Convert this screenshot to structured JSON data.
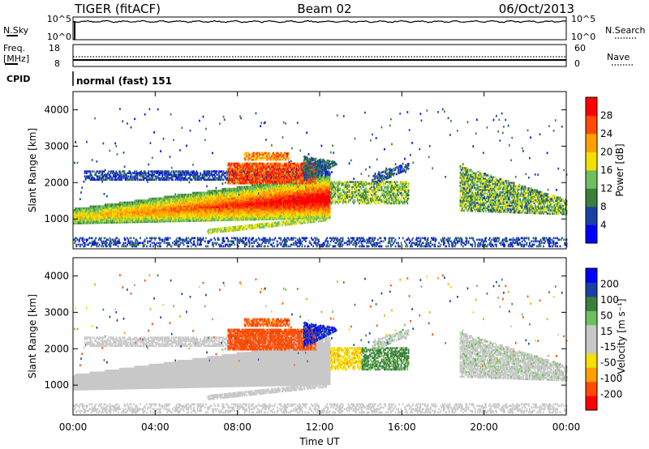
{
  "header": {
    "title": "TIGER (fitACF)",
    "beam": "Beam 02",
    "date": "06/Oct/2013"
  },
  "sky_panel": {
    "left_label": "N.Sky",
    "right_label": "N.Search",
    "left_ticks": [
      "10^5",
      "10^0"
    ],
    "right_ticks": [
      "10^5",
      "10^0"
    ]
  },
  "freq_panel": {
    "left_label_1": "Freq.",
    "left_label_2": "[MHz]",
    "right_label": "Nave",
    "left_ticks": [
      "18",
      "8"
    ],
    "right_ticks": [
      "60",
      "0"
    ]
  },
  "cpid": {
    "label": "CPID",
    "value": "normal (fast) 151"
  },
  "x_axis": {
    "label": "Time UT",
    "ticks": [
      "00:00",
      "04:00",
      "08:00",
      "12:00",
      "16:00",
      "20:00",
      "00:00"
    ]
  },
  "chart_data": [
    {
      "type": "heatmap",
      "title": "Power",
      "ylabel": "Slant Range [km]",
      "xlabel": "",
      "y_ticks": [
        "1000",
        "2000",
        "3000",
        "4000"
      ],
      "ylim": [
        180,
        4500
      ],
      "colorbar_label": "Power [dB]",
      "colorbar_ticks": [
        "28",
        "24",
        "20",
        "16",
        "12",
        "8",
        "4"
      ],
      "colorbar_range": [
        0,
        32
      ],
      "colors": [
        "#0000ff",
        "#1a3fa6",
        "#3a7f3a",
        "#6fbf5f",
        "#f2e000",
        "#ffa000",
        "#ff4a00",
        "#ff0000"
      ]
    },
    {
      "type": "heatmap",
      "title": "Velocity",
      "ylabel": "Slant Range [km]",
      "xlabel": "Time UT",
      "y_ticks": [
        "1000",
        "2000",
        "3000",
        "4000"
      ],
      "ylim": [
        180,
        4500
      ],
      "colorbar_label": "Velocity [m s⁻¹]",
      "colorbar_ticks": [
        "200",
        "100",
        "50",
        "15",
        "-15",
        "-50",
        "-100",
        "-200"
      ],
      "colorbar_range": [
        -250,
        250
      ],
      "colors": [
        "#ff0000",
        "#ff4a00",
        "#ffa000",
        "#f2e000",
        "#c8c8c8",
        "#c8c8c8",
        "#6fbf5f",
        "#3a7f3a",
        "#1a3fa6",
        "#0000ff"
      ]
    }
  ]
}
